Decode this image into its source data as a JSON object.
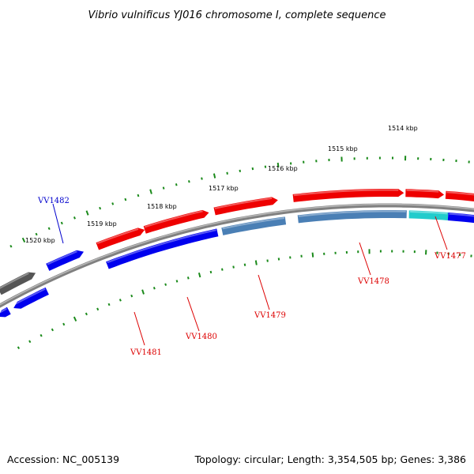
{
  "title": "Vibrio vulnificus YJ016 chromosome I, complete sequence",
  "footer": {
    "accession": "Accession: NC_005139",
    "stats": "Topology: circular; Length: 3,354,505 bp; Genes: 3,386"
  },
  "colors": {
    "backbone": "#808080",
    "ruler": "#1a8a1a",
    "red_gene": "#ee0000",
    "blue_gene": "#0000ee",
    "steel_gene": "#4a7fb5",
    "cyan_gene": "#22cccc",
    "gray_gene": "#555555",
    "label_red": "#dd0000",
    "label_blue": "#0000cc"
  },
  "ruler_labels": [
    "1514 kbp",
    "1515 kbp",
    "1516 kbp",
    "1517 kbp",
    "1518 kbp",
    "1519 kbp",
    "1520 kbp"
  ],
  "gene_labels": [
    "VV1477",
    "VV1478",
    "VV1479",
    "VV1480",
    "VV1481",
    "VV1482"
  ]
}
